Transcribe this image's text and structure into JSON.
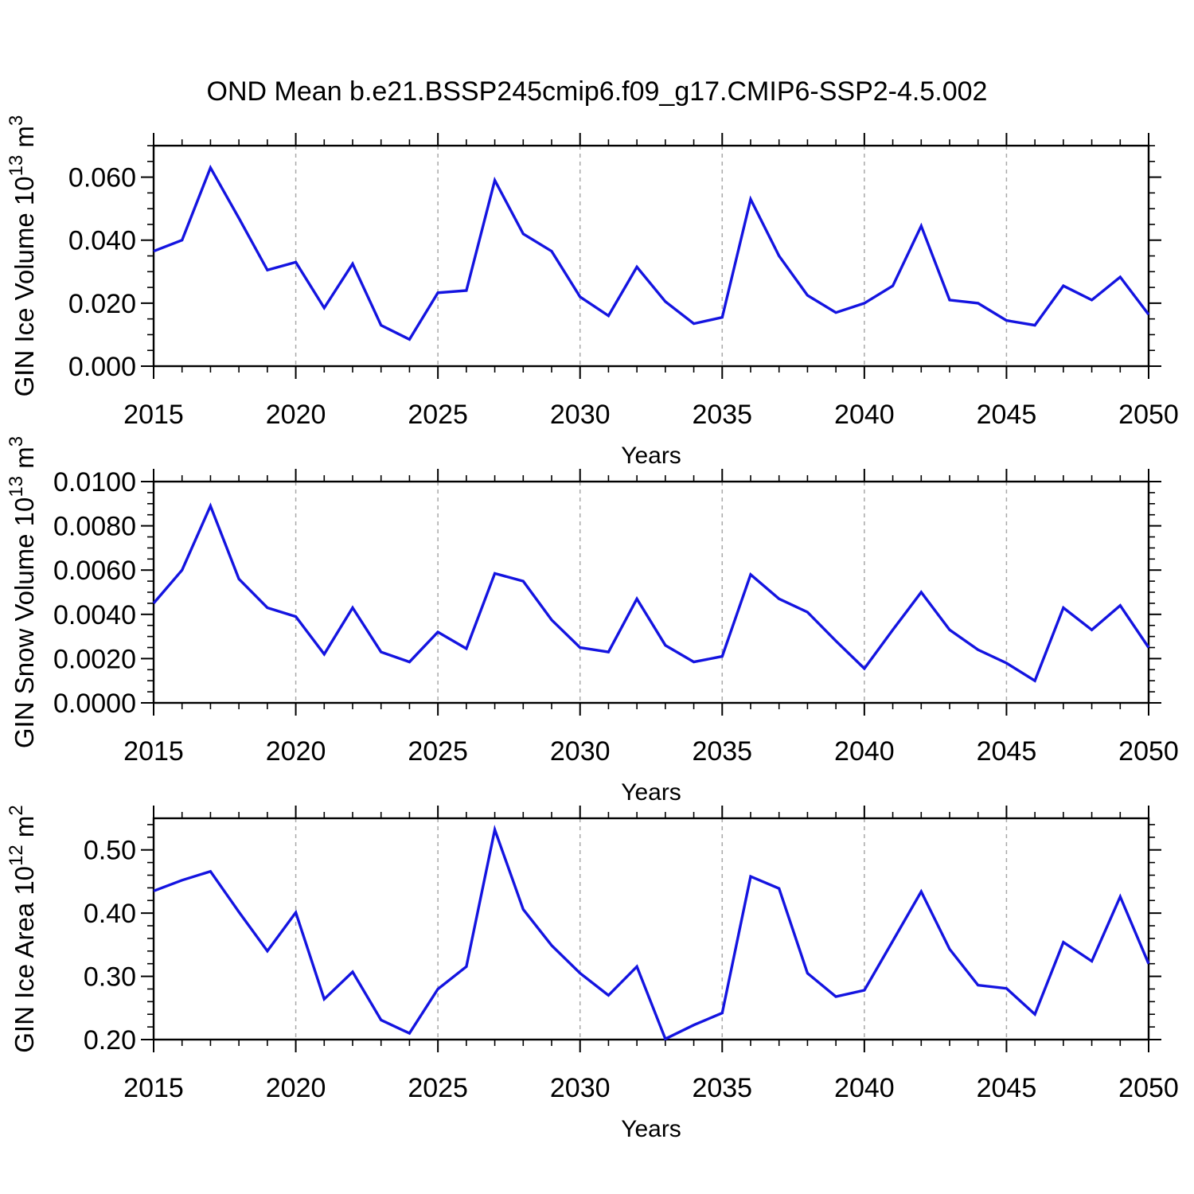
{
  "title": "OND Mean b.e21.BSSP245cmip6.f09_g17.CMIP6-SSP2-4.5.002",
  "xlabel": "Years",
  "years": [
    2015,
    2016,
    2017,
    2018,
    2019,
    2020,
    2021,
    2022,
    2023,
    2024,
    2025,
    2026,
    2027,
    2028,
    2029,
    2030,
    2031,
    2032,
    2033,
    2034,
    2035,
    2036,
    2037,
    2038,
    2039,
    2040,
    2041,
    2042,
    2043,
    2044,
    2045,
    2046,
    2047,
    2048,
    2049,
    2050
  ],
  "x_major_ticks": [
    2015,
    2020,
    2025,
    2030,
    2035,
    2040,
    2045,
    2050
  ],
  "x_gridlines": [
    2020,
    2025,
    2030,
    2035,
    2040,
    2045
  ],
  "colors": {
    "line": "#1414e0",
    "axis": "#000000",
    "grid": "#a9a9a9",
    "text": "#000000"
  },
  "chart_data": [
    {
      "type": "line",
      "name": "gin-ice-volume",
      "ylabel_segments": [
        {
          "t": "GIN Ice Volume 10"
        },
        {
          "t": "13",
          "sup": true
        },
        {
          "t": " m"
        },
        {
          "t": "3",
          "sup": true
        }
      ],
      "xlabel": "Years",
      "ylim": [
        0,
        0.07
      ],
      "ytick_major": [
        0.0,
        0.02,
        0.04,
        0.06
      ],
      "ytick_labels": [
        "0.000",
        "0.020",
        "0.040",
        "0.060"
      ],
      "ytick_minor_step": 0.005,
      "grid": "x-dashed",
      "values": [
        0.0365,
        0.04,
        0.063,
        0.047,
        0.0305,
        0.033,
        0.0185,
        0.0325,
        0.013,
        0.0085,
        0.0233,
        0.024,
        0.059,
        0.042,
        0.0365,
        0.022,
        0.016,
        0.0315,
        0.0205,
        0.0135,
        0.0155,
        0.053,
        0.035,
        0.0225,
        0.017,
        0.02,
        0.0255,
        0.0445,
        0.021,
        0.02,
        0.0145,
        0.013,
        0.0255,
        0.021,
        0.0283,
        0.0164
      ]
    },
    {
      "type": "line",
      "name": "gin-snow-volume",
      "ylabel_segments": [
        {
          "t": "GIN Snow Volume 10"
        },
        {
          "t": "13",
          "sup": true
        },
        {
          "t": " m"
        },
        {
          "t": "3",
          "sup": true
        }
      ],
      "xlabel": "Years",
      "ylim": [
        0,
        0.01
      ],
      "ytick_major": [
        0.0,
        0.002,
        0.004,
        0.006,
        0.008,
        0.01
      ],
      "ytick_labels": [
        "0.0000",
        "0.0020",
        "0.0040",
        "0.0060",
        "0.0080",
        "0.0100"
      ],
      "ytick_minor_step": 0.0005,
      "grid": "x-dashed",
      "values": [
        0.0045,
        0.006,
        0.0089,
        0.0056,
        0.0043,
        0.0039,
        0.0022,
        0.0043,
        0.0023,
        0.00185,
        0.0032,
        0.00245,
        0.00585,
        0.0055,
        0.00375,
        0.0025,
        0.0023,
        0.0047,
        0.0026,
        0.00185,
        0.0021,
        0.0058,
        0.0047,
        0.0041,
        0.0028,
        0.00155,
        0.0033,
        0.005,
        0.0033,
        0.0024,
        0.0018,
        0.001,
        0.0043,
        0.0033,
        0.0044,
        0.0025
      ]
    },
    {
      "type": "line",
      "name": "gin-ice-area",
      "ylabel_segments": [
        {
          "t": "GIN Ice Area 10"
        },
        {
          "t": "12",
          "sup": true
        },
        {
          "t": " m"
        },
        {
          "t": "2",
          "sup": true
        }
      ],
      "xlabel": "Years",
      "ylim": [
        0.2,
        0.55
      ],
      "ytick_major": [
        0.2,
        0.3,
        0.4,
        0.5
      ],
      "ytick_labels": [
        "0.20",
        "0.30",
        "0.40",
        "0.50"
      ],
      "ytick_minor_step": 0.02,
      "grid": "x-dashed",
      "values": [
        0.435,
        0.452,
        0.466,
        0.402,
        0.34,
        0.401,
        0.264,
        0.307,
        0.231,
        0.21,
        0.28,
        0.3155,
        0.532,
        0.406,
        0.349,
        0.305,
        0.27,
        0.3155,
        0.201,
        0.223,
        0.242,
        0.458,
        0.439,
        0.305,
        0.268,
        0.278,
        0.356,
        0.434,
        0.343,
        0.286,
        0.281,
        0.24,
        0.354,
        0.324,
        0.426,
        0.32
      ]
    }
  ]
}
